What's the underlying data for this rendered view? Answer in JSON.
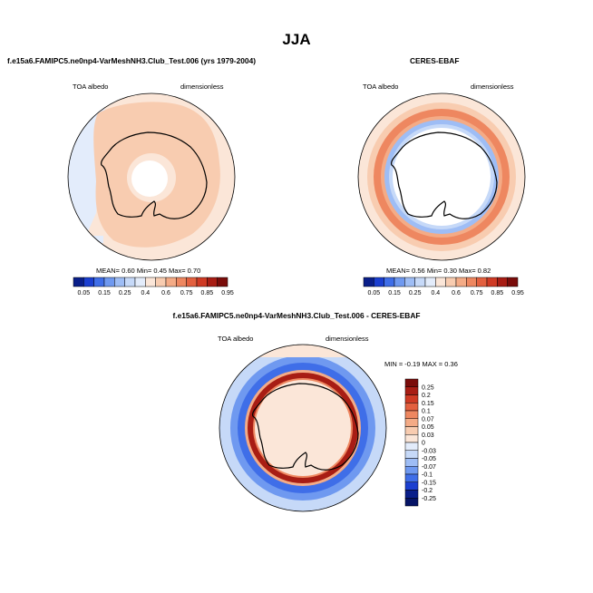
{
  "header": {
    "title": "JJA"
  },
  "panels": {
    "model": {
      "title": "f.e15a6.FAMIPC5.ne0np4-VarMeshNH3.Club_Test.006 (yrs 1979-2004)",
      "left_label": "TOA albedo",
      "right_label": "dimensionless",
      "stats": "MEAN=  0.60  Min=  0.45  Max=  0.70"
    },
    "obs": {
      "title": "CERES-EBAF",
      "left_label": "TOA albedo",
      "right_label": "dimensionless",
      "stats": "MEAN=  0.56  Min=  0.30  Max=  0.82"
    },
    "diff": {
      "title": "f.e15a6.FAMIPC5.ne0np4-VarMeshNH3.Club_Test.006 - CERES-EBAF",
      "left_label": "TOA albedo",
      "right_label": "dimensionless",
      "stats": "MIN = -0.19 MAX =   0.36"
    }
  },
  "chart_data": [
    {
      "type": "heatmap",
      "projection": "south-polar-stereographic",
      "title": "f.e15a6.FAMIPC5.ne0np4-VarMeshNH3.Club_Test.006 (yrs 1979-2004)",
      "variable": "TOA albedo",
      "units": "dimensionless",
      "mean": 0.6,
      "min": 0.45,
      "max": 0.7,
      "colorbar": {
        "orientation": "horizontal",
        "levels": [
          "0.05",
          "0.15",
          "0.25",
          "0.4",
          "0.6",
          "0.75",
          "0.85",
          "0.95"
        ],
        "colors": [
          "#0a1f8a",
          "#1b3fd0",
          "#3f6ee8",
          "#6f99f0",
          "#9ebdf5",
          "#c6d9f8",
          "#e3ecfb",
          "#fbe6d8",
          "#f8ccb0",
          "#f4ab86",
          "#ee8760",
          "#e3603f",
          "#cf3a24",
          "#a81d14",
          "#7a0c0a"
        ]
      },
      "fields": {
        "ocean_ring": 0.5,
        "continent_interior": 0.65,
        "pole_hole": 0.55
      }
    },
    {
      "type": "heatmap",
      "projection": "south-polar-stereographic",
      "title": "CERES-EBAF",
      "variable": "TOA albedo",
      "units": "dimensionless",
      "mean": 0.56,
      "min": 0.3,
      "max": 0.82,
      "colorbar": {
        "orientation": "horizontal",
        "levels": [
          "0.05",
          "0.15",
          "0.25",
          "0.4",
          "0.6",
          "0.75",
          "0.85",
          "0.95"
        ],
        "colors": [
          "#0a1f8a",
          "#1b3fd0",
          "#3f6ee8",
          "#6f99f0",
          "#9ebdf5",
          "#c6d9f8",
          "#e3ecfb",
          "#fbe6d8",
          "#f8ccb0",
          "#f4ab86",
          "#ee8760",
          "#e3603f",
          "#cf3a24",
          "#a81d14",
          "#7a0c0a"
        ]
      },
      "fields": {
        "storm_track_ring": 0.8,
        "sea_ice_edge": 0.35,
        "continent_interior": 0.5
      }
    },
    {
      "type": "heatmap",
      "projection": "south-polar-stereographic",
      "title": "f.e15a6.FAMIPC5.ne0np4-VarMeshNH3.Club_Test.006 - CERES-EBAF",
      "variable": "TOA albedo",
      "units": "dimensionless",
      "min": -0.19,
      "max": 0.36,
      "colorbar": {
        "orientation": "vertical",
        "levels": [
          "0.25",
          "0.2",
          "0.15",
          "0.1",
          "0.07",
          "0.05",
          "0.03",
          "0",
          "-0.03",
          "-0.05",
          "-0.07",
          "-0.1",
          "-0.15",
          "-0.2",
          "-0.25"
        ],
        "colors": [
          "#7a0c0a",
          "#a81d14",
          "#cf3a24",
          "#e3603f",
          "#ee8760",
          "#f4ab86",
          "#f8ccb0",
          "#fbe6d8",
          "#e3ecfb",
          "#c6d9f8",
          "#9ebdf5",
          "#6f99f0",
          "#3f6ee8",
          "#1b3fd0",
          "#0a1f8a",
          "#061466"
        ]
      },
      "fields": {
        "ice_edge_ring": 0.3,
        "storm_track_ring": -0.12,
        "continent_interior": 0.02
      }
    }
  ]
}
